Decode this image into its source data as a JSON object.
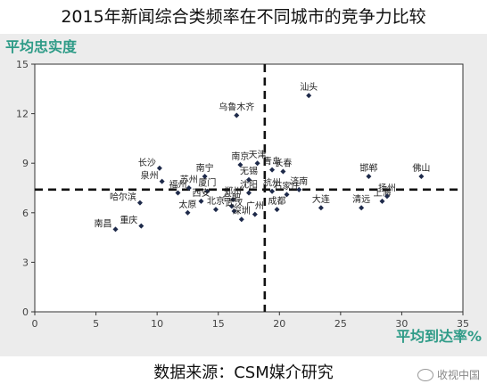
{
  "title": "2015年新闻综合类频率在不同城市的竞争力比较",
  "source": "数据来源：CSM媒介研究",
  "watermark": "收视中国",
  "chart_data": {
    "type": "scatter",
    "title": "2015年新闻综合类频率在不同城市的竞争力比较",
    "xlabel": "平均到达率%",
    "ylabel": "平均忠实度",
    "xlim": [
      0,
      35
    ],
    "ylim": [
      0,
      15
    ],
    "xticks": [
      0,
      5,
      10,
      15,
      20,
      25,
      30,
      35
    ],
    "yticks": [
      0,
      3,
      6,
      9,
      12,
      15
    ],
    "reference_lines": {
      "x": 18.8,
      "y": 7.4,
      "style": "dashed"
    },
    "grid": false,
    "points": [
      {
        "label": "汕头",
        "x": 22.4,
        "y": 13.1
      },
      {
        "label": "乌鲁木齐",
        "x": 16.5,
        "y": 11.9
      },
      {
        "label": "南京",
        "x": 16.8,
        "y": 8.9
      },
      {
        "label": "天津",
        "x": 18.2,
        "y": 9.0
      },
      {
        "label": "青岛",
        "x": 19.4,
        "y": 8.6
      },
      {
        "label": "长春",
        "x": 20.3,
        "y": 8.5
      },
      {
        "label": "长沙",
        "x": 10.2,
        "y": 8.7
      },
      {
        "label": "南宁",
        "x": 13.9,
        "y": 8.2
      },
      {
        "label": "无锡",
        "x": 17.5,
        "y": 8.0
      },
      {
        "label": "泉州",
        "x": 10.4,
        "y": 7.9
      },
      {
        "label": "苏州",
        "x": 12.6,
        "y": 7.5
      },
      {
        "label": "福州",
        "x": 11.7,
        "y": 7.2
      },
      {
        "label": "厦门",
        "x": 14.1,
        "y": 7.3
      },
      {
        "label": "沈阳",
        "x": 17.5,
        "y": 7.2
      },
      {
        "label": "郑州",
        "x": 16.2,
        "y": 6.8
      },
      {
        "label": "西安",
        "x": 13.6,
        "y": 6.7
      },
      {
        "label": "合肥",
        "x": 16.1,
        "y": 6.4
      },
      {
        "label": "杭州",
        "x": 19.4,
        "y": 7.3
      },
      {
        "label": "石家庄",
        "x": 20.6,
        "y": 7.1
      },
      {
        "label": "济南",
        "x": 21.6,
        "y": 7.4
      },
      {
        "label": "哈尔滨",
        "x": 8.6,
        "y": 6.6
      },
      {
        "label": "北京",
        "x": 14.8,
        "y": 6.2
      },
      {
        "label": "武汉",
        "x": 16.3,
        "y": 6.1
      },
      {
        "label": "广州",
        "x": 18.0,
        "y": 5.9
      },
      {
        "label": "成都",
        "x": 19.8,
        "y": 6.2
      },
      {
        "label": "太原",
        "x": 12.5,
        "y": 6.0
      },
      {
        "label": "深圳",
        "x": 16.9,
        "y": 5.6
      },
      {
        "label": "大连",
        "x": 23.4,
        "y": 6.3
      },
      {
        "label": "清远",
        "x": 26.7,
        "y": 6.3
      },
      {
        "label": "上海",
        "x": 28.4,
        "y": 6.7
      },
      {
        "label": "邯郸",
        "x": 27.3,
        "y": 8.2
      },
      {
        "label": "佛山",
        "x": 31.6,
        "y": 8.2
      },
      {
        "label": "扬州",
        "x": 28.8,
        "y": 7.0
      },
      {
        "label": "重庆",
        "x": 8.7,
        "y": 5.2
      },
      {
        "label": "南昌",
        "x": 6.6,
        "y": 5.0
      }
    ]
  }
}
